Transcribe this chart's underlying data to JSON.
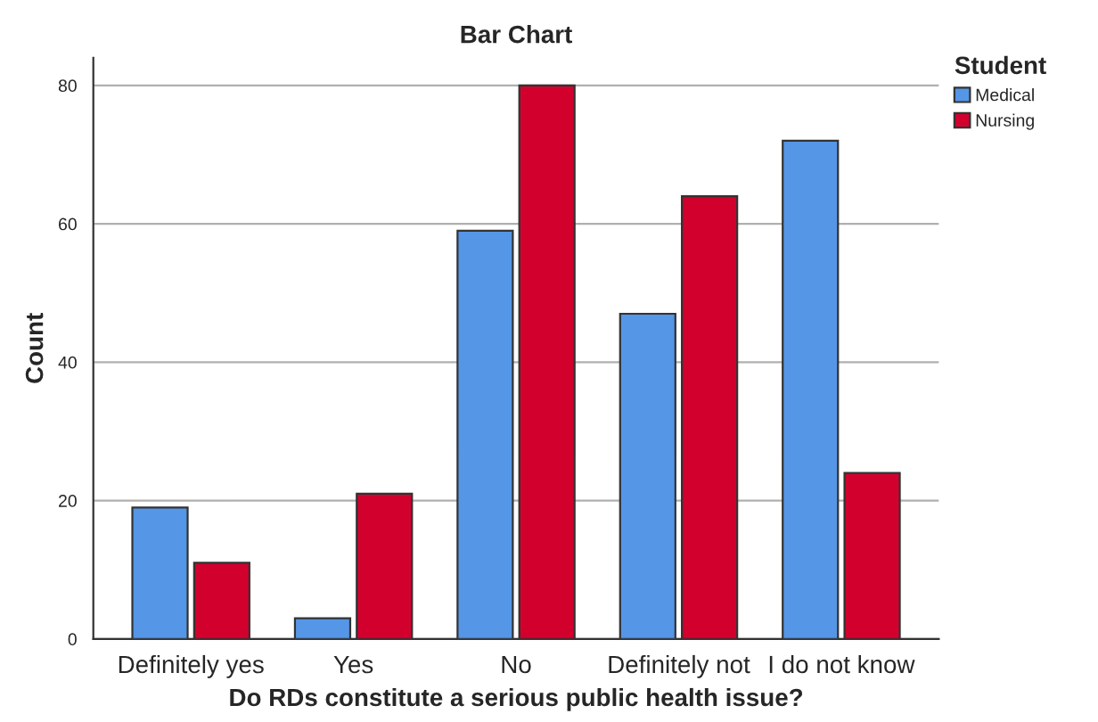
{
  "chart_data": {
    "type": "bar",
    "title": "Bar Chart",
    "xlabel": "Do RDs constitute a serious public health issue?",
    "ylabel": "Count",
    "legend_title": "Student",
    "categories": [
      "Definitely yes",
      "Yes",
      "No",
      "Definitely not",
      "I do not know"
    ],
    "series": [
      {
        "name": "Medical",
        "color": "#5596e6",
        "values": [
          19,
          3,
          59,
          47,
          72
        ]
      },
      {
        "name": "Nursing",
        "color": "#d2002d",
        "values": [
          11,
          21,
          80,
          64,
          24
        ]
      }
    ],
    "ylim": [
      0,
      84
    ],
    "yticks": [
      0,
      20,
      40,
      60,
      80
    ],
    "grid": "y",
    "legend": "top right"
  }
}
